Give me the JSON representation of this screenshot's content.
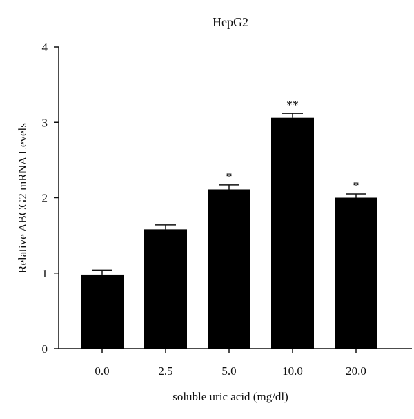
{
  "chart_data": {
    "type": "bar",
    "title": "HepG2",
    "xlabel": "soluble uric acid (mg/dl)",
    "ylabel": "Relative ABCG2 mRNA Levels",
    "ylim": [
      0,
      4
    ],
    "yticks": [
      "0",
      "1",
      "2",
      "3",
      "4"
    ],
    "categories": [
      "0.0",
      "2.5",
      "5.0",
      "10.0",
      "20.0"
    ],
    "values": [
      0.98,
      1.58,
      2.11,
      3.06,
      2.0
    ],
    "errors": [
      0.06,
      0.06,
      0.06,
      0.06,
      0.05
    ],
    "annotations": [
      "",
      "",
      "*",
      "**",
      "*"
    ],
    "bar_color": "#000000",
    "grid": false
  }
}
